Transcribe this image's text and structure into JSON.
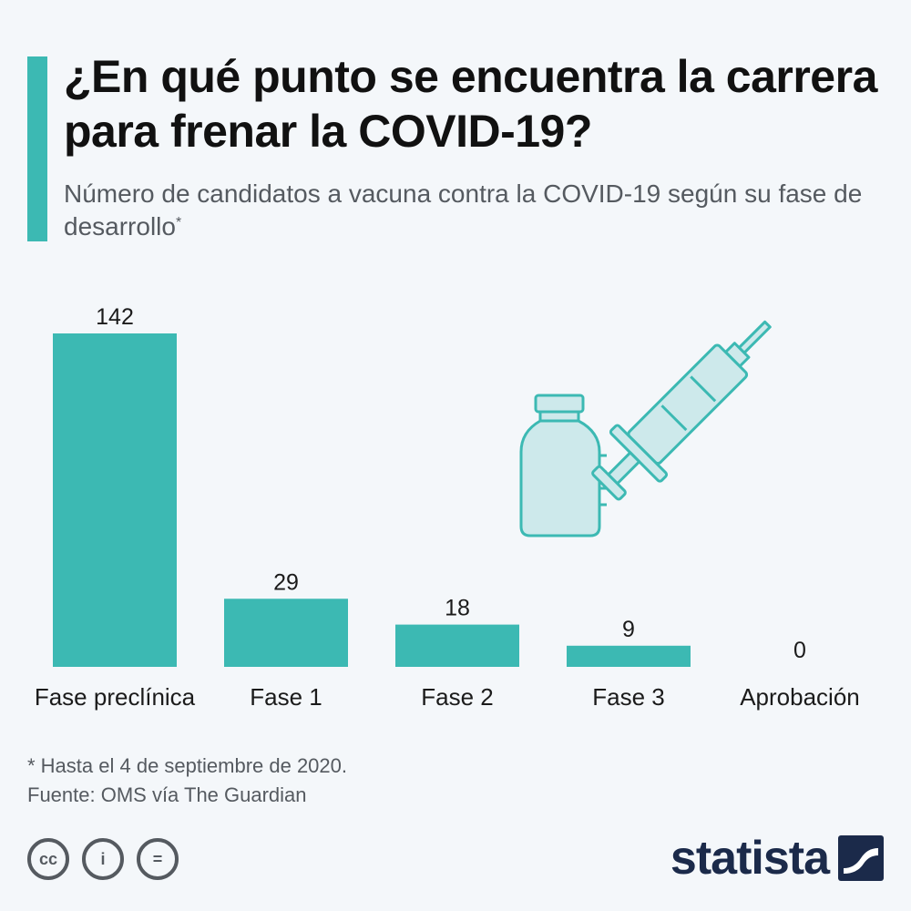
{
  "header": {
    "title": "¿En qué punto se encuentra la carrera para frenar la COVID-19?",
    "subtitle": "Número de candidatos a vacuna contra la COVID-19 según su fase de desarrollo",
    "subtitle_mark": "*"
  },
  "chart_data": {
    "type": "bar",
    "categories": [
      "Fase preclínica",
      "Fase 1",
      "Fase 2",
      "Fase 3",
      "Aprobación"
    ],
    "values": [
      142,
      29,
      18,
      9,
      0
    ],
    "title": "¿En qué punto se encuentra la carrera para frenar la COVID-19?",
    "subtitle": "Número de candidatos a vacuna contra la COVID-19 según su fase de desarrollo",
    "xlabel": "",
    "ylabel": "",
    "ylim": [
      0,
      142
    ],
    "grid": false,
    "legend": "none",
    "bar_color": "#3cb9b3"
  },
  "illustration": {
    "icons": [
      "vaccine-vial-icon",
      "syringe-icon"
    ],
    "color": "#cde9eb",
    "outline_color": "#3cb9b3"
  },
  "footer": {
    "note": "* Hasta el 4 de septiembre de 2020.",
    "source": "Fuente: OMS vía The Guardian",
    "license_icons": [
      "cc-icon",
      "attribution-icon",
      "no-derivatives-icon"
    ],
    "license_glyphs": [
      "cc",
      "i",
      "="
    ],
    "brand": "statista",
    "brand_color": "#1b2a4a"
  }
}
